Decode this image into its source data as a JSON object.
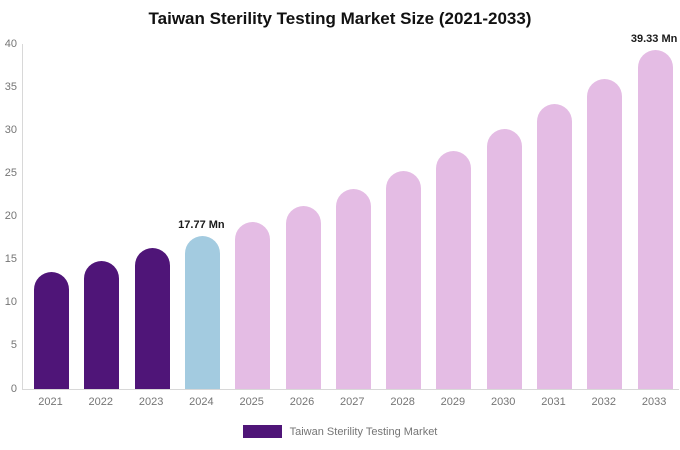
{
  "chart_data": {
    "type": "bar",
    "title": "Taiwan Sterility Testing Market Size (2021-2033)",
    "categories": [
      "2021",
      "2022",
      "2023",
      "2024",
      "2025",
      "2026",
      "2027",
      "2028",
      "2029",
      "2030",
      "2031",
      "2032",
      "2033"
    ],
    "values": [
      13.6,
      14.9,
      16.3,
      17.77,
      19.4,
      21.2,
      23.2,
      25.3,
      27.6,
      30.2,
      33.0,
      36.0,
      39.33
    ],
    "bar_colors": [
      "#4f1578",
      "#4f1578",
      "#4f1578",
      "#a3cbe0",
      "#e4bce4",
      "#e4bce4",
      "#e4bce4",
      "#e4bce4",
      "#e4bce4",
      "#e4bce4",
      "#e4bce4",
      "#e4bce4",
      "#e4bce4"
    ],
    "annotations": [
      {
        "category": "2024",
        "label": "17.77 Mn"
      },
      {
        "category": "2033",
        "label": "39.33 Mn"
      }
    ],
    "xlabel": "",
    "ylabel": "",
    "ylim": [
      0,
      40
    ],
    "yticks": [
      0,
      5,
      10,
      15,
      20,
      25,
      30,
      35,
      40
    ],
    "grid": false,
    "legend": {
      "position": "bottom",
      "label": "Taiwan Sterility Testing Market",
      "swatch_color": "#4f1578"
    }
  },
  "colors": {
    "historical_bar": "#4f1578",
    "base_year_bar": "#a3cbe0",
    "forecast_bar": "#e4bce4",
    "axis_line": "#d8d8d8",
    "tick_text": "#757575",
    "title_text": "#111111",
    "annotation_text": "#1a1a1a",
    "background": "#ffffff"
  }
}
